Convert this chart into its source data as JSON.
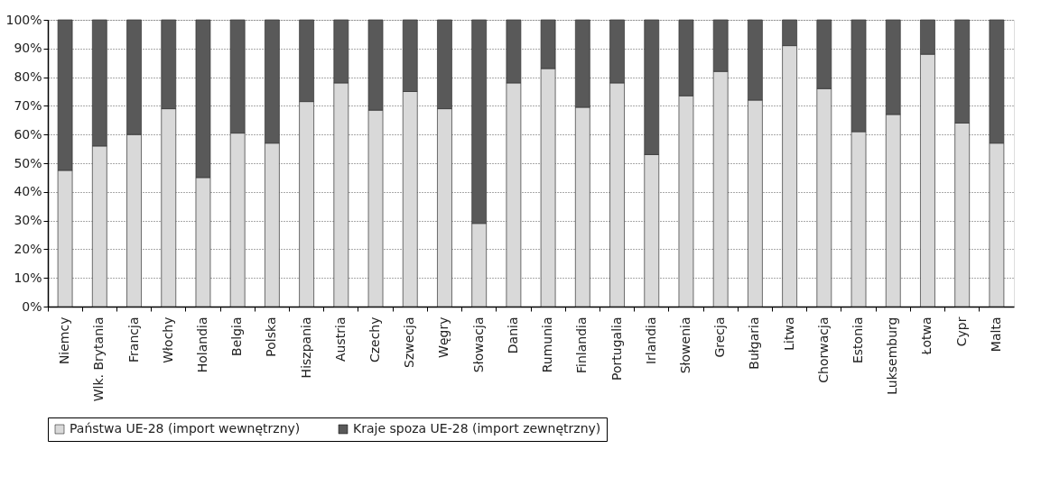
{
  "chart_data": {
    "type": "bar",
    "stacked": true,
    "grid": "y",
    "legend": "bottom",
    "categories": [
      "Niemcy",
      "Wlk. Brytania",
      "Francja",
      "Włochy",
      "Holandia",
      "Belgia",
      "Polska",
      "Hiszpania",
      "Austria",
      "Czechy",
      "Szwecja",
      "Węgry",
      "Słowacja",
      "Dania",
      "Rumunia",
      "Finlandia",
      "Portugalia",
      "Irlandia",
      "Słowenia",
      "Grecja",
      "Bułgaria",
      "Litwa",
      "Chorwacja",
      "Estonia",
      "Luksemburg",
      "Łotwa",
      "Cypr",
      "Malta"
    ],
    "series": [
      {
        "name": "Państwa UE-28 (import wewnętrzny)",
        "color": "#d9d9d9",
        "values": [
          47.5,
          56,
          60,
          69,
          45,
          60.5,
          57,
          71.5,
          78,
          68.5,
          75,
          69,
          29,
          78,
          83,
          69.5,
          78,
          53,
          73.5,
          82,
          72,
          91,
          76,
          61,
          67,
          88,
          64,
          57
        ]
      },
      {
        "name": "Kraje spoza UE-28 (import zewnętrzny)",
        "color": "#595959",
        "values": [
          52.5,
          44,
          40,
          31,
          55,
          39.5,
          43,
          28.5,
          22,
          31.5,
          25,
          31,
          71,
          22,
          17,
          30.5,
          22,
          47,
          26.5,
          18,
          28,
          9,
          24,
          39,
          33,
          12,
          36,
          43
        ]
      }
    ],
    "ylim": [
      0,
      100
    ],
    "yticks": [
      {
        "value": 0,
        "label": "0%"
      },
      {
        "value": 10,
        "label": "10%"
      },
      {
        "value": 20,
        "label": "20%"
      },
      {
        "value": 30,
        "label": "30%"
      },
      {
        "value": 40,
        "label": "40%"
      },
      {
        "value": 50,
        "label": "50%"
      },
      {
        "value": 60,
        "label": "60%"
      },
      {
        "value": 70,
        "label": "70%"
      },
      {
        "value": 80,
        "label": "80%"
      },
      {
        "value": 90,
        "label": "90%"
      },
      {
        "value": 100,
        "label": "100%"
      }
    ]
  }
}
